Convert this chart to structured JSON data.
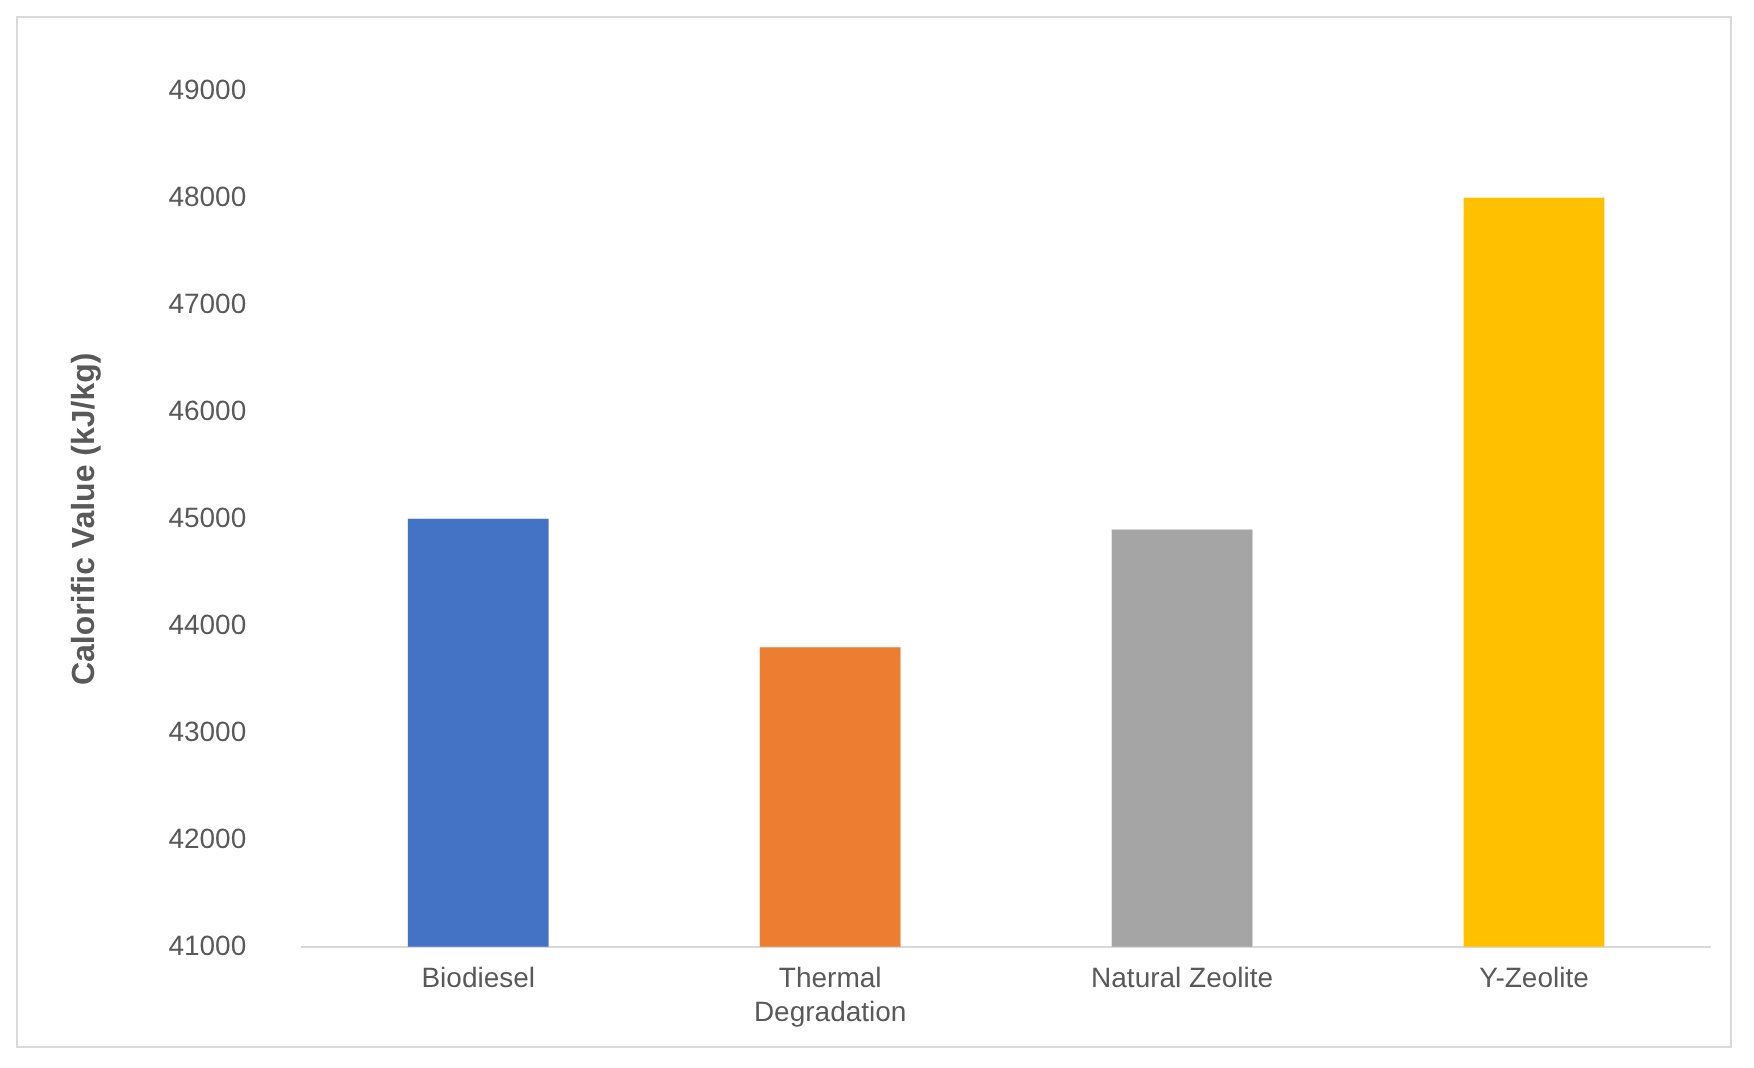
{
  "chart_data": {
    "type": "bar",
    "ylabel": "Calorific Value (kJ/kg)",
    "categories": [
      "Biodiesel",
      "Thermal Degradation",
      "Natural Zeolite",
      "Y-Zeolite"
    ],
    "values": [
      45000,
      43800,
      44900,
      48000
    ],
    "colors": [
      "#4472c4",
      "#ed7d31",
      "#a5a5a5",
      "#ffc000"
    ],
    "ylim": [
      41000,
      49000
    ],
    "yticks": [
      41000,
      42000,
      43000,
      44000,
      45000,
      46000,
      47000,
      48000,
      49000
    ],
    "grid": false,
    "legend": false
  }
}
